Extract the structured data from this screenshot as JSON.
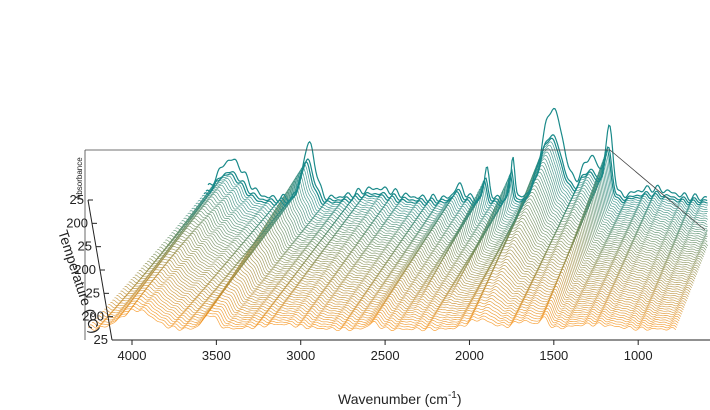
{
  "chart_data": {
    "type": "line",
    "subtype": "3d-waterfall",
    "xlabel": "Wavenumber (cm",
    "xlabel_sup": "-1",
    "xlabel_close": ")",
    "ylabel": "Temperature (°C)",
    "zlabel": "Absorbance",
    "x_ticks": [
      "4000",
      "3500",
      "3000",
      "2500",
      "2000",
      "1500",
      "1000"
    ],
    "x_tick_values": [
      4000,
      3500,
      3000,
      2500,
      2000,
      1500,
      1000
    ],
    "xlim": [
      4000,
      600
    ],
    "y_ticks": [
      "25",
      "200",
      "25",
      "200",
      "25",
      "200",
      "25"
    ],
    "n_traces": 60,
    "color_front": "#F7941D",
    "color_back": "#1A8A8A",
    "grid": false,
    "legend": "none"
  }
}
